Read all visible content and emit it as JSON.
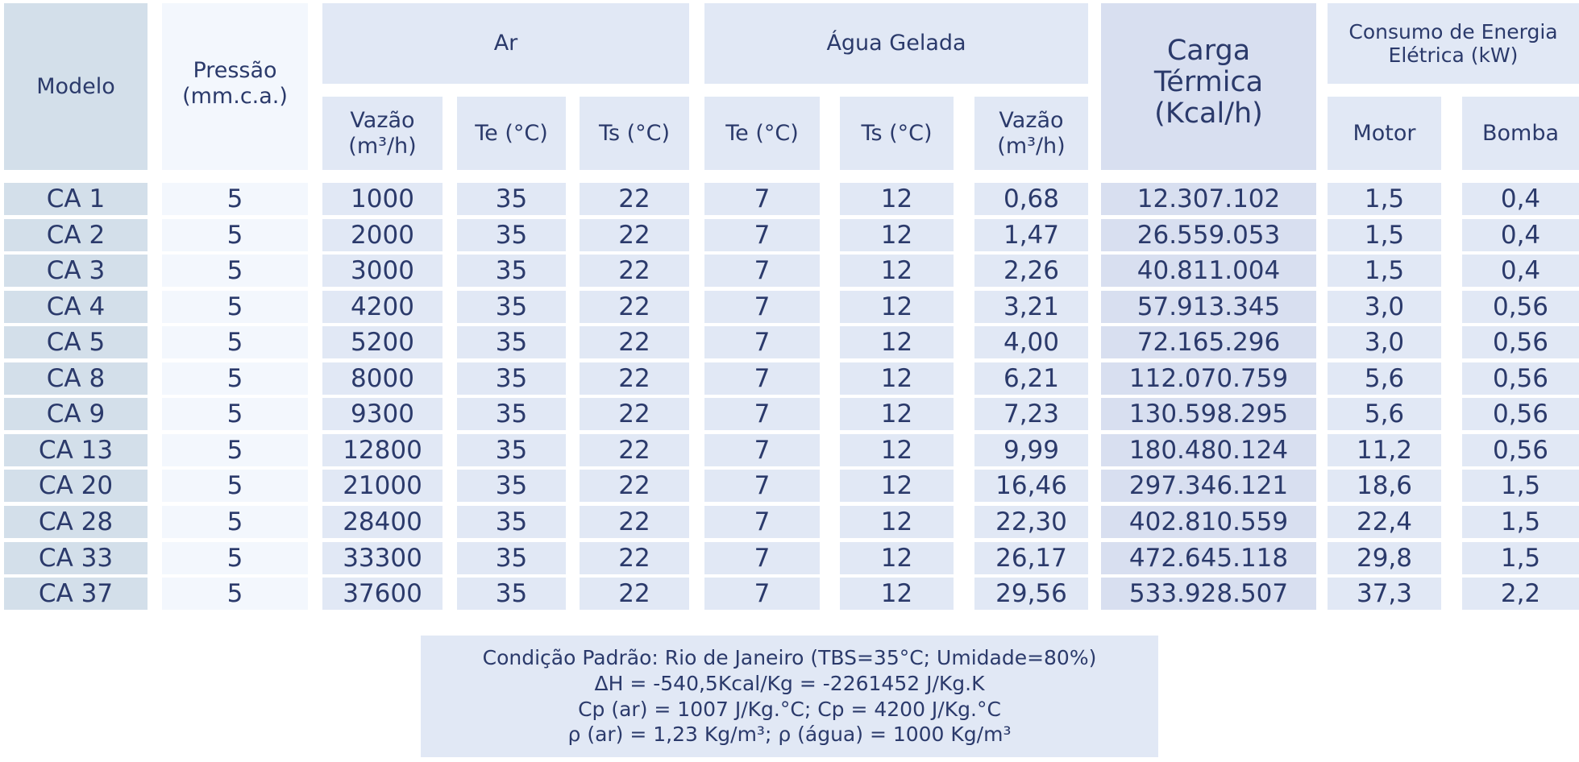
{
  "table": {
    "headers": {
      "modelo": "Modelo",
      "pressao": "Pressão\n(mm.c.a.)",
      "ar": "Ar",
      "agua": "Água Gelada",
      "carga": "Carga\nTérmica\n(Kcal/h)",
      "consumo": "Consumo de Energia\nElétrica (kW)",
      "ar_vazao": "Vazão\n(m³/h)",
      "ar_te": "Te (°C)",
      "ar_ts": "Ts (°C)",
      "agua_te": "Te (°C)",
      "agua_ts": "Ts (°C)",
      "agua_vazao": "Vazão\n(m³/h)",
      "motor": "Motor",
      "bomba": "Bomba"
    },
    "rows": [
      [
        "CA 1",
        "5",
        "1000",
        "35",
        "22",
        "7",
        "12",
        "0,68",
        "12.307.102",
        "1,5",
        "0,4"
      ],
      [
        "CA 2",
        "5",
        "2000",
        "35",
        "22",
        "7",
        "12",
        "1,47",
        "26.559.053",
        "1,5",
        "0,4"
      ],
      [
        "CA 3",
        "5",
        "3000",
        "35",
        "22",
        "7",
        "12",
        "2,26",
        "40.811.004",
        "1,5",
        "0,4"
      ],
      [
        "CA 4",
        "5",
        "4200",
        "35",
        "22",
        "7",
        "12",
        "3,21",
        "57.913.345",
        "3,0",
        "0,56"
      ],
      [
        "CA 5",
        "5",
        "5200",
        "35",
        "22",
        "7",
        "12",
        "4,00",
        "72.165.296",
        "3,0",
        "0,56"
      ],
      [
        "CA 8",
        "5",
        "8000",
        "35",
        "22",
        "7",
        "12",
        "6,21",
        "112.070.759",
        "5,6",
        "0,56"
      ],
      [
        "CA 9",
        "5",
        "9300",
        "35",
        "22",
        "7",
        "12",
        "7,23",
        "130.598.295",
        "5,6",
        "0,56"
      ],
      [
        "CA 13",
        "5",
        "12800",
        "35",
        "22",
        "7",
        "12",
        "9,99",
        "180.480.124",
        "11,2",
        "0,56"
      ],
      [
        "CA 20",
        "5",
        "21000",
        "35",
        "22",
        "7",
        "12",
        "16,46",
        "297.346.121",
        "18,6",
        "1,5"
      ],
      [
        "CA 28",
        "5",
        "28400",
        "35",
        "22",
        "7",
        "12",
        "22,30",
        "402.810.559",
        "22,4",
        "1,5"
      ],
      [
        "CA 33",
        "5",
        "33300",
        "35",
        "22",
        "7",
        "12",
        "26,17",
        "472.645.118",
        "29,8",
        "1,5"
      ],
      [
        "CA 37",
        "5",
        "37600",
        "35",
        "22",
        "7",
        "12",
        "29,56",
        "533.928.507",
        "37,3",
        "2,2"
      ]
    ]
  },
  "footer": {
    "line1": "Condição Padrão: Rio de Janeiro (TBS=35°C; Umidade=80%)",
    "line2": "ΔH = -540,5Kcal/Kg = -2261452 J/Kg.K",
    "line3": "Cp (ar) = 1007 J/Kg.°C; Cp = 4200 J/Kg.°C",
    "line4": "ρ (ar) = 1,23 Kg/m³; ρ (água) = 1000 Kg/m³"
  },
  "colors": {
    "col_modelo": "#d3dfea",
    "col_pressao": "#f3f7fd",
    "col_standard": "#e1e8f5",
    "col_carga": "#d8dff0",
    "text": "#2b3a6b"
  }
}
